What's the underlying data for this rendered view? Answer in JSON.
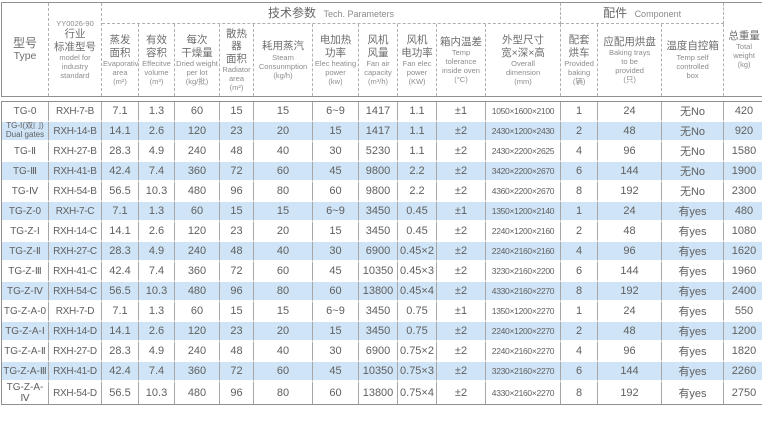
{
  "table": {
    "header": {
      "type_col": {
        "zh": "型号",
        "en": "Type"
      },
      "standard_col": {
        "code": "YY0026-90",
        "zh": "行业\n标准型号",
        "en": "model for\nindustry\nstandard"
      },
      "groups": {
        "tech": {
          "zh": "技术参数",
          "en": "Tech. Parameters"
        },
        "component": {
          "zh": "配件",
          "en": "Component"
        }
      },
      "columns": [
        {
          "key": "evaporative-area",
          "zh": "蒸发\n面积",
          "en": "Evaporative\narea",
          "unit": "(m²)"
        },
        {
          "key": "effective-volume",
          "zh": "有效\n容积",
          "en": "Effecitve\nvolume",
          "unit": "(m³)"
        },
        {
          "key": "dried-weight-per-lot",
          "zh": "每次\n干燥量",
          "en": "Dried weight\nper lot",
          "unit": "(kg/批)"
        },
        {
          "key": "radiator-area",
          "zh": "散热器\n面积",
          "en": "Radiator\narea",
          "unit": "(m²)"
        },
        {
          "key": "steam-consumption",
          "zh": "耗用蒸汽",
          "en": "Steam\nConsunmption",
          "unit": "(kg/h)"
        },
        {
          "key": "elec-heating-power",
          "zh": "电加热\n功率",
          "en": "Elec heating\npower",
          "unit": "(kw)"
        },
        {
          "key": "fan-air-capacity",
          "zh": "风机\n风量",
          "en": "Fan air\ncapacity",
          "unit": "(m³/h)"
        },
        {
          "key": "fan-elec-power",
          "zh": "风机\n电功率",
          "en": "Fan elec\npower",
          "unit": "(KW)"
        },
        {
          "key": "temp-tolerance",
          "zh": "箱内温差",
          "en": "Temp\ntolerance\ninside oven",
          "unit": "(°C)"
        },
        {
          "key": "overall-dimension",
          "zh": "外型尺寸\n宽×深×高",
          "en": "Overall\ndimension",
          "unit": "(mm)"
        },
        {
          "key": "baking-carts",
          "zh": "配套\n烘车",
          "en": "Provided\nbaking",
          "unit": "(辆)"
        },
        {
          "key": "baking-trays",
          "zh": "应配用烘盘",
          "en": "Baking trays\nto be\nprovided",
          "unit": "(只)"
        },
        {
          "key": "temp-control-box",
          "zh": "温度自控箱",
          "en": "Temp self\ncontrolled\nbox",
          "unit": ""
        }
      ],
      "total_weight_col": {
        "key": "total-weight",
        "zh": "总重量",
        "en": "Total\nweight",
        "unit": "(kg)"
      }
    },
    "rows": [
      [
        "TG-0",
        "RXH-7-B",
        "7.1",
        "1.3",
        "60",
        "15",
        "15",
        "6~9",
        "1417",
        "1.1",
        "±1",
        "1050×1600×2100",
        "1",
        "24",
        "无No",
        "420"
      ],
      [
        "TG-Ⅰ(双门)\nDual gates",
        "RXH-14-B",
        "14.1",
        "2.6",
        "120",
        "23",
        "20",
        "15",
        "1417",
        "1.1",
        "±2",
        "2430×1200×2430",
        "2",
        "48",
        "无No",
        "920"
      ],
      [
        "TG-Ⅱ",
        "RXH-27-B",
        "28.3",
        "4.9",
        "240",
        "48",
        "40",
        "30",
        "5230",
        "1.1",
        "±2",
        "2430×2200×2625",
        "4",
        "96",
        "无No",
        "1580"
      ],
      [
        "TG-Ⅲ",
        "RXH-41-B",
        "42.4",
        "7.4",
        "360",
        "72",
        "60",
        "45",
        "9800",
        "2.2",
        "±2",
        "3420×2200×2670",
        "6",
        "144",
        "无No",
        "1900"
      ],
      [
        "TG-Ⅳ",
        "RXH-54-B",
        "56.5",
        "10.3",
        "480",
        "96",
        "80",
        "60",
        "9800",
        "2.2",
        "±2",
        "4360×2200×2670",
        "8",
        "192",
        "无No",
        "2300"
      ],
      [
        "TG-Z-0",
        "RXH-7-C",
        "7.1",
        "1.3",
        "60",
        "15",
        "15",
        "6~9",
        "3450",
        "0.45",
        "±1",
        "1350×1200×2140",
        "1",
        "24",
        "有yes",
        "480"
      ],
      [
        "TG-Z-Ⅰ",
        "RXH-14-C",
        "14.1",
        "2.6",
        "120",
        "23",
        "20",
        "15",
        "3450",
        "0.45",
        "±2",
        "2240×1200×2160",
        "2",
        "48",
        "有yes",
        "1080"
      ],
      [
        "TG-Z-Ⅱ",
        "RXH-27-C",
        "28.3",
        "4.9",
        "240",
        "48",
        "40",
        "30",
        "6900",
        "0.45×2",
        "±2",
        "2240×2160×2160",
        "4",
        "96",
        "有yes",
        "1620"
      ],
      [
        "TG-Z-Ⅲ",
        "RXH-41-C",
        "42.4",
        "7.4",
        "360",
        "72",
        "60",
        "45",
        "10350",
        "0.45×3",
        "±2",
        "3230×2160×2200",
        "6",
        "144",
        "有yes",
        "1960"
      ],
      [
        "TG-Z-Ⅳ",
        "RXH-54-C",
        "56.5",
        "10.3",
        "480",
        "96",
        "80",
        "60",
        "13800",
        "0.45×4",
        "±2",
        "4330×2160×2270",
        "8",
        "192",
        "有yes",
        "2400"
      ],
      [
        "TG-Z-A-0",
        "RXH-7-D",
        "7.1",
        "1.3",
        "60",
        "15",
        "15",
        "6~9",
        "3450",
        "0.75",
        "±1",
        "1350×1200×2270",
        "1",
        "24",
        "有yes",
        "550"
      ],
      [
        "TG-Z-A-Ⅰ",
        "RXH-14-D",
        "14.1",
        "2.6",
        "120",
        "23",
        "20",
        "15",
        "3450",
        "0.75",
        "±2",
        "2240×1200×2270",
        "2",
        "48",
        "有yes",
        "1200"
      ],
      [
        "TG-Z-A-Ⅱ",
        "RXH-27-D",
        "28.3",
        "4.9",
        "240",
        "48",
        "40",
        "30",
        "6900",
        "0.75×2",
        "±2",
        "2240×2160×2270",
        "4",
        "96",
        "有yes",
        "1820"
      ],
      [
        "TG-Z-A-Ⅲ",
        "RXH-41-D",
        "42.4",
        "7.4",
        "360",
        "72",
        "60",
        "45",
        "10350",
        "0.75×3",
        "±2",
        "3230×2160×2270",
        "6",
        "144",
        "有yes",
        "2260"
      ],
      [
        "TG-Z-A-Ⅳ",
        "RXH-54-D",
        "56.5",
        "10.3",
        "480",
        "96",
        "80",
        "60",
        "13800",
        "0.75×4",
        "±2",
        "4330×2160×2270",
        "8",
        "192",
        "有yes",
        "2750"
      ]
    ],
    "colors": {
      "stripe": "#cfe4f6",
      "border_outer": "#8f8f8f",
      "border_inner": "#a6a6a6",
      "text": "#606060",
      "header_text": "#6e6e6e"
    }
  }
}
